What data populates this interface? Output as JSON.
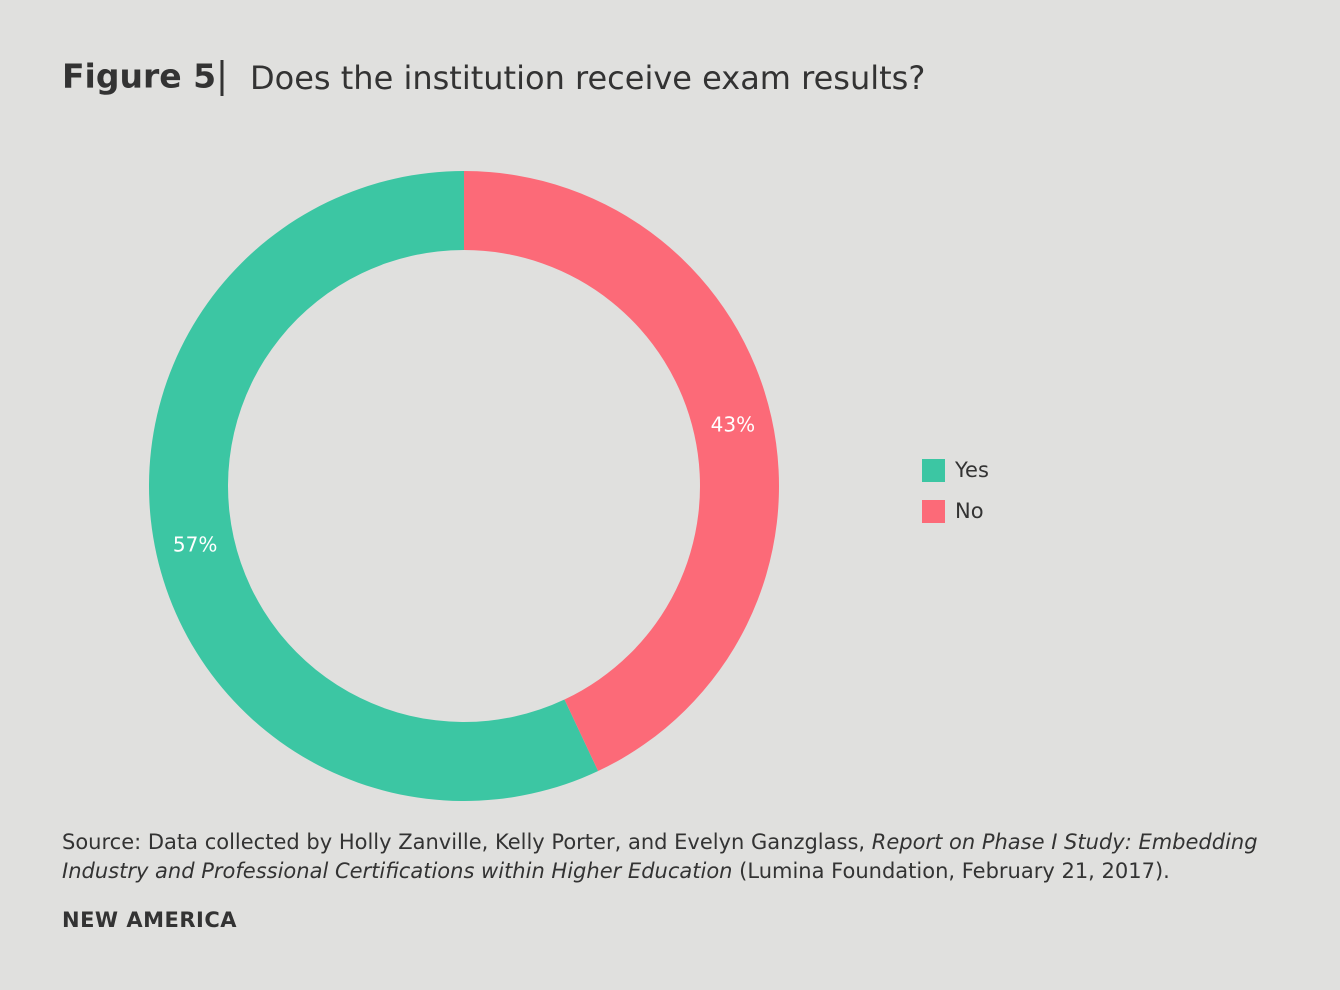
{
  "chart_data": {
    "type": "pie",
    "figure_label": "Figure 5",
    "title": "Does the institution receive exam results?",
    "categories": [
      "Yes",
      "No"
    ],
    "values": [
      57,
      43
    ],
    "value_labels": [
      "57%",
      "43%"
    ],
    "colors": [
      "#3cc6a3",
      "#fc6a78"
    ],
    "donut": true,
    "legend_position": "right",
    "source_prefix": "Source: Data collected by Holly Zanville, Kelly Porter, and Evelyn Ganzglass,",
    "source_title": "Report on Phase I Study: Embedding Industry and Professional Certifications within Higher Education",
    "source_suffix": "(Lumina Foundation, February 21, 2017).",
    "brand": "NEW AMERICA"
  }
}
